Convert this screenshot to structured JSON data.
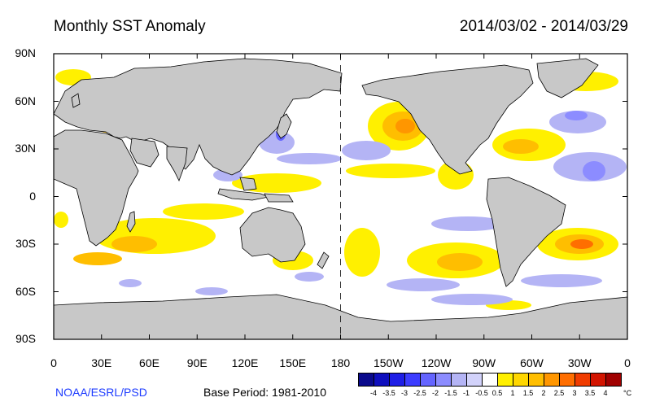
{
  "title_left": "Monthly SST Anomaly",
  "title_right": "2014/03/02 - 2014/03/29",
  "y_ticks": [
    "90N",
    "60N",
    "30N",
    "0",
    "30S",
    "60S",
    "90S"
  ],
  "x_ticks": [
    "0",
    "30E",
    "60E",
    "90E",
    "120E",
    "150E",
    "180",
    "150W",
    "120W",
    "90W",
    "60W",
    "30W",
    "0"
  ],
  "credit": "NOAA/ESRL/PSD",
  "base_period": "Base Period: 1981-2010",
  "colorbar": {
    "labels": [
      "-4",
      "-3.5",
      "-3",
      "-2.5",
      "-2",
      "-1.5",
      "-1",
      "-0.5",
      "0.5",
      "1",
      "1.5",
      "2",
      "2.5",
      "3",
      "3.5",
      "4"
    ],
    "colors": [
      "#0a0a8c",
      "#0f0fbe",
      "#1e1ee6",
      "#3c3cff",
      "#6464ff",
      "#8c8cff",
      "#b4b4f5",
      "#d2d2fa",
      "#ffffff",
      "#fff000",
      "#ffd700",
      "#ffbe00",
      "#ff9600",
      "#ff6e00",
      "#f03c00",
      "#d21400",
      "#a00000"
    ],
    "unit": "°C"
  },
  "colors": {
    "land": "#c8c8c8",
    "ocean": "#ffffff",
    "warm": "#ffd700",
    "cold": "#b4b4f5"
  }
}
